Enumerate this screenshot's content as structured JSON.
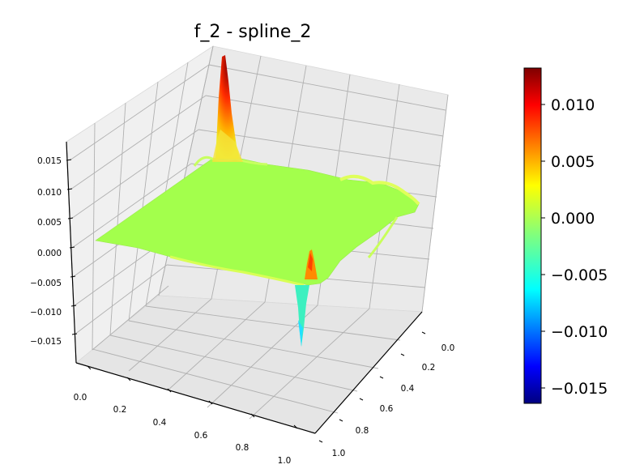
{
  "title": "f_2 - spline_2",
  "chart_data": {
    "type": "surface3d",
    "title": "f_2 - spline_2",
    "colormap": "jet",
    "x_ticks": [
      "0.0",
      "0.2",
      "0.4",
      "0.6",
      "0.8",
      "1.0"
    ],
    "y_ticks": [
      "0.0",
      "0.2",
      "0.4",
      "0.6",
      "0.8",
      "1.0"
    ],
    "z_ticks": [
      "−0.015",
      "−0.010",
      "−0.005",
      "0.000",
      "0.005",
      "0.010",
      "0.015"
    ],
    "colorbar_ticks": [
      "−0.015",
      "−0.010",
      "−0.005",
      "0.000",
      "0.005",
      "0.010"
    ],
    "xlim": [
      0,
      1
    ],
    "ylim": [
      0,
      1
    ],
    "zlim": [
      -0.017,
      0.017
    ],
    "color_range": [
      -0.0165,
      0.0132
    ],
    "surface_baseline": 0.0,
    "features": [
      {
        "kind": "peak",
        "x": 0.0,
        "y": 1.0,
        "z": 0.0132
      },
      {
        "kind": "peak",
        "x": 0.9,
        "y": 0.6,
        "z": 0.006
      },
      {
        "kind": "dip",
        "x": 1.0,
        "y": 0.6,
        "z": -0.0095
      }
    ],
    "grid": true
  }
}
